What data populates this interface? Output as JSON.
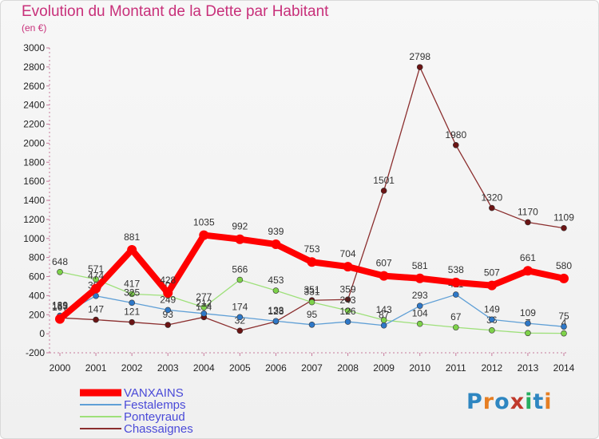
{
  "title": "Evolution du Montant de la Dette par Habitant",
  "subtitle": "(en €)",
  "logo": {
    "text": "Proxiti",
    "colors": [
      "#2e86c1",
      "#e67e22",
      "#2e86c1",
      "#c0392b",
      "#27ae60",
      "#2e86c1",
      "#e67e22"
    ]
  },
  "chart_data": {
    "type": "line",
    "x": [
      "2000",
      "2001",
      "2002",
      "2003",
      "2004",
      "2005",
      "2006",
      "2007",
      "2008",
      "2009",
      "2010",
      "2011",
      "2012",
      "2013",
      "2014"
    ],
    "ylim": [
      -200,
      3000
    ],
    "yticks": [
      "-200",
      "0",
      "200",
      "400",
      "600",
      "800",
      "1000",
      "1200",
      "1400",
      "1600",
      "1800",
      "2000",
      "2200",
      "2400",
      "2600",
      "2800",
      "3000"
    ],
    "grid": false,
    "legend_placement": "bottom-left",
    "series": [
      {
        "name": "VANXAINS",
        "color": "#ff0000",
        "marker": "#ff0000",
        "values": [
          155,
          474,
          881,
          428,
          1035,
          992,
          939,
          753,
          704,
          607,
          581,
          538,
          507,
          661,
          580
        ],
        "labels": [
          "155",
          "474",
          "881",
          "428",
          "1035",
          "992",
          "939",
          "753",
          "704",
          "607",
          "581",
          "538",
          "507",
          "661",
          "580"
        ]
      },
      {
        "name": "Festalemps",
        "color": "#5f9fd6",
        "marker": "#2e78c8",
        "values": [
          189,
          397,
          325,
          249,
          212,
          174,
          133,
          95,
          126,
          87,
          293,
          411,
          149,
          109,
          75
        ],
        "labels": [
          "189",
          "397",
          "325",
          "249",
          "212",
          "174",
          "133",
          "95",
          "126",
          "87",
          "293",
          "411",
          "149",
          "109",
          "75"
        ]
      },
      {
        "name": "Ponteyraud",
        "color": "#9ee07a",
        "marker": "#7ed24a",
        "values": [
          648,
          571,
          417,
          400,
          277,
          566,
          453,
          331,
          243,
          143,
          104,
          67,
          36,
          7,
          4
        ],
        "labels": [
          "648",
          "571",
          "417",
          "400",
          "277",
          "566",
          "453",
          "331",
          "243",
          "143",
          "104",
          "67",
          "36",
          "7",
          "4"
        ]
      },
      {
        "name": "Chassaignes",
        "color": "#8b2e2e",
        "marker": "#6b1414",
        "values": [
          167,
          147,
          121,
          93,
          174,
          32,
          128,
          351,
          359,
          1501,
          2798,
          1980,
          1320,
          1170,
          1109
        ],
        "labels": [
          "167",
          "147",
          "121",
          "93",
          "174",
          "32",
          "128",
          "351",
          "359",
          "1501",
          "2798",
          "1980",
          "1320",
          "1170",
          "1109"
        ]
      }
    ]
  }
}
